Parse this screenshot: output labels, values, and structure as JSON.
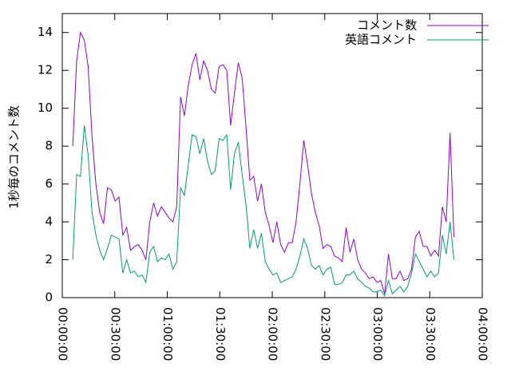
{
  "chart_data": {
    "type": "line",
    "y_label": "1秒毎のコメント数",
    "x": [
      6,
      8.2,
      10.4,
      12.6,
      14.8,
      17,
      19.2,
      21.4,
      23.6,
      25.8,
      28,
      30.2,
      32.4,
      34.6,
      36.8,
      39,
      41.2,
      43.4,
      45.6,
      47.8,
      50,
      52.2,
      54.4,
      56.6,
      58.8,
      61,
      63.2,
      65.4,
      67.6,
      69.8,
      72,
      74.2,
      76.4,
      78.6,
      80.8,
      83,
      85.2,
      87.4,
      89.6,
      91.8,
      94,
      96.2,
      98.4,
      100.6,
      102.8,
      105,
      107.2,
      109.4,
      111.6,
      113.8,
      116,
      118.2,
      120.4,
      122.6,
      124.8,
      127,
      129.2,
      131.4,
      133.6,
      135.8,
      138,
      140.2,
      142.4,
      144.6,
      146.8,
      149,
      151.2,
      153.4,
      155.6,
      157.8,
      160,
      162.2,
      164.4,
      166.6,
      168.8,
      171,
      173.2,
      175.4,
      177.6,
      179.8,
      182,
      184.2,
      186.4,
      188.6,
      190.8,
      193,
      195.2,
      197.4,
      199.6,
      201.8,
      204,
      206.2,
      208.4,
      210.6,
      212.8,
      215,
      217.2,
      219.4,
      221.6,
      223.8
    ],
    "series": [
      {
        "name": "コメント数",
        "color": "#9400d3",
        "values": [
          8.0,
          12.5,
          14.0,
          13.6,
          12.2,
          8.5,
          6.0,
          4.5,
          3.9,
          5.8,
          5.7,
          5.1,
          5.3,
          3.3,
          3.7,
          2.5,
          2.7,
          2.8,
          2.5,
          2.0,
          4.0,
          5.0,
          4.3,
          4.8,
          4.5,
          4.2,
          4.0,
          4.8,
          10.6,
          9.6,
          11.2,
          12.3,
          12.9,
          11.5,
          12.5,
          12.0,
          11.0,
          10.8,
          12.2,
          12.3,
          12.0,
          9.1,
          10.8,
          12.4,
          11.6,
          9.0,
          6.2,
          6.4,
          5.1,
          6.0,
          4.5,
          3.8,
          2.9,
          4.0,
          2.8,
          2.4,
          2.9,
          2.9,
          4.0,
          6.0,
          8.3,
          7.0,
          5.5,
          4.5,
          3.8,
          2.6,
          2.8,
          2.7,
          2.2,
          2.1,
          1.9,
          3.7,
          2.4,
          3.1,
          2.0,
          1.5,
          1.3,
          1.0,
          1.1,
          0.8,
          0.9,
          0.2,
          2.3,
          1.0,
          1.0,
          1.4,
          0.9,
          1.0,
          1.5,
          3.2,
          3.5,
          2.7,
          2.7,
          2.2,
          2.5,
          2.2,
          4.8,
          4.0,
          8.7,
          3.2
        ]
      },
      {
        "name": "英語コメント",
        "color": "#009e73",
        "values": [
          2.0,
          6.5,
          6.4,
          9.1,
          7.5,
          4.5,
          3.3,
          2.5,
          2.0,
          2.6,
          3.3,
          3.2,
          3.1,
          1.3,
          2.0,
          1.3,
          1.4,
          1.1,
          1.2,
          0.8,
          2.4,
          2.7,
          1.9,
          2.1,
          2.0,
          2.3,
          1.5,
          1.9,
          5.8,
          5.4,
          7.0,
          8.6,
          8.5,
          7.6,
          8.4,
          7.2,
          6.5,
          6.7,
          8.4,
          8.3,
          8.6,
          5.7,
          7.6,
          8.2,
          6.5,
          4.9,
          2.6,
          3.6,
          2.6,
          3.4,
          1.9,
          1.5,
          1.2,
          1.3,
          0.8,
          0.9,
          1.0,
          1.1,
          1.5,
          2.2,
          3.1,
          2.6,
          1.7,
          1.5,
          1.7,
          1.2,
          1.5,
          1.6,
          0.7,
          0.7,
          0.8,
          1.2,
          1.2,
          1.4,
          1.0,
          0.8,
          0.6,
          0.5,
          0.3,
          0.3,
          0.4,
          0.1,
          0.9,
          0.2,
          0.4,
          0.6,
          0.3,
          0.6,
          1.3,
          2.3,
          1.9,
          1.5,
          1.1,
          1.4,
          1.1,
          1.3,
          3.3,
          2.3,
          4.0,
          2.0
        ]
      }
    ],
    "xlim": [
      0,
      240
    ],
    "xticks": [
      {
        "value": 0,
        "label": "00:00:00"
      },
      {
        "value": 30,
        "label": "00:30:00"
      },
      {
        "value": 60,
        "label": "01:00:00"
      },
      {
        "value": 90,
        "label": "01:30:00"
      },
      {
        "value": 120,
        "label": "02:00:00"
      },
      {
        "value": 150,
        "label": "02:30:00"
      },
      {
        "value": 180,
        "label": "03:00:00"
      },
      {
        "value": 210,
        "label": "03:30:00"
      },
      {
        "value": 240,
        "label": "04:00:00"
      }
    ],
    "ylim": [
      0,
      15
    ],
    "yticks": [
      0,
      2,
      4,
      6,
      8,
      10,
      12,
      14
    ],
    "legend": "top-right"
  }
}
